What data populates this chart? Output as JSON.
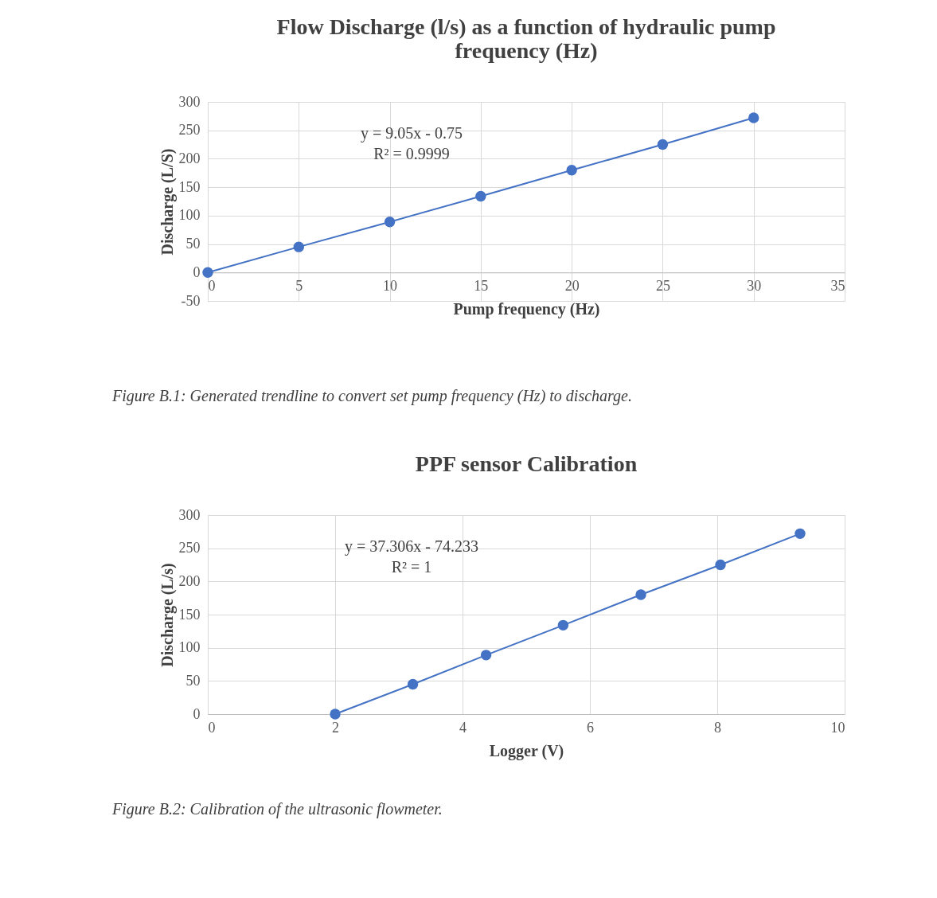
{
  "chart_data": [
    {
      "type": "line",
      "title": "Flow Discharge (l/s) as a function of hydraulic pump frequency (Hz)",
      "xlabel": "Pump frequency (Hz)",
      "ylabel": "Discharge (L/S)",
      "series": [
        {
          "color": "#4472c4",
          "x": [
            0,
            5,
            10,
            15,
            20,
            25,
            30
          ],
          "values": [
            0,
            45,
            89,
            134,
            180,
            225,
            272
          ]
        }
      ],
      "xlim": [
        0,
        35
      ],
      "xticks": [
        0,
        5,
        10,
        15,
        20,
        25,
        30,
        35
      ],
      "ylim": [
        -50,
        300
      ],
      "yticks": [
        -50,
        0,
        50,
        100,
        150,
        200,
        250,
        300
      ],
      "grid": true,
      "marker": "circle",
      "line_style": "solid",
      "annotations": [
        "y = 9.05x - 0.75",
        "R² = 0.9999",
        "Figure B.1: Generated trendline to convert set pump frequency (Hz) to discharge."
      ]
    },
    {
      "type": "line",
      "title": "PPF sensor Calibration",
      "xlabel": "Logger (V)",
      "ylabel": "Discharge (L/s)",
      "series": [
        {
          "color": "#4472c4",
          "x": [
            2,
            3.22,
            4.37,
            5.58,
            6.8,
            8.05,
            9.3
          ],
          "values": [
            0,
            45,
            89,
            134,
            180,
            225,
            272
          ]
        }
      ],
      "xlim": [
        0,
        10
      ],
      "xticks": [
        0,
        2,
        4,
        6,
        8,
        10
      ],
      "ylim": [
        0,
        300
      ],
      "yticks": [
        0,
        50,
        100,
        150,
        200,
        250,
        300
      ],
      "grid": true,
      "marker": "circle",
      "line_style": "solid",
      "annotations": [
        "y = 37.306x - 74.233",
        "R² = 1",
        "Figure B.2: Calibration of the ultrasonic flowmeter."
      ]
    }
  ]
}
